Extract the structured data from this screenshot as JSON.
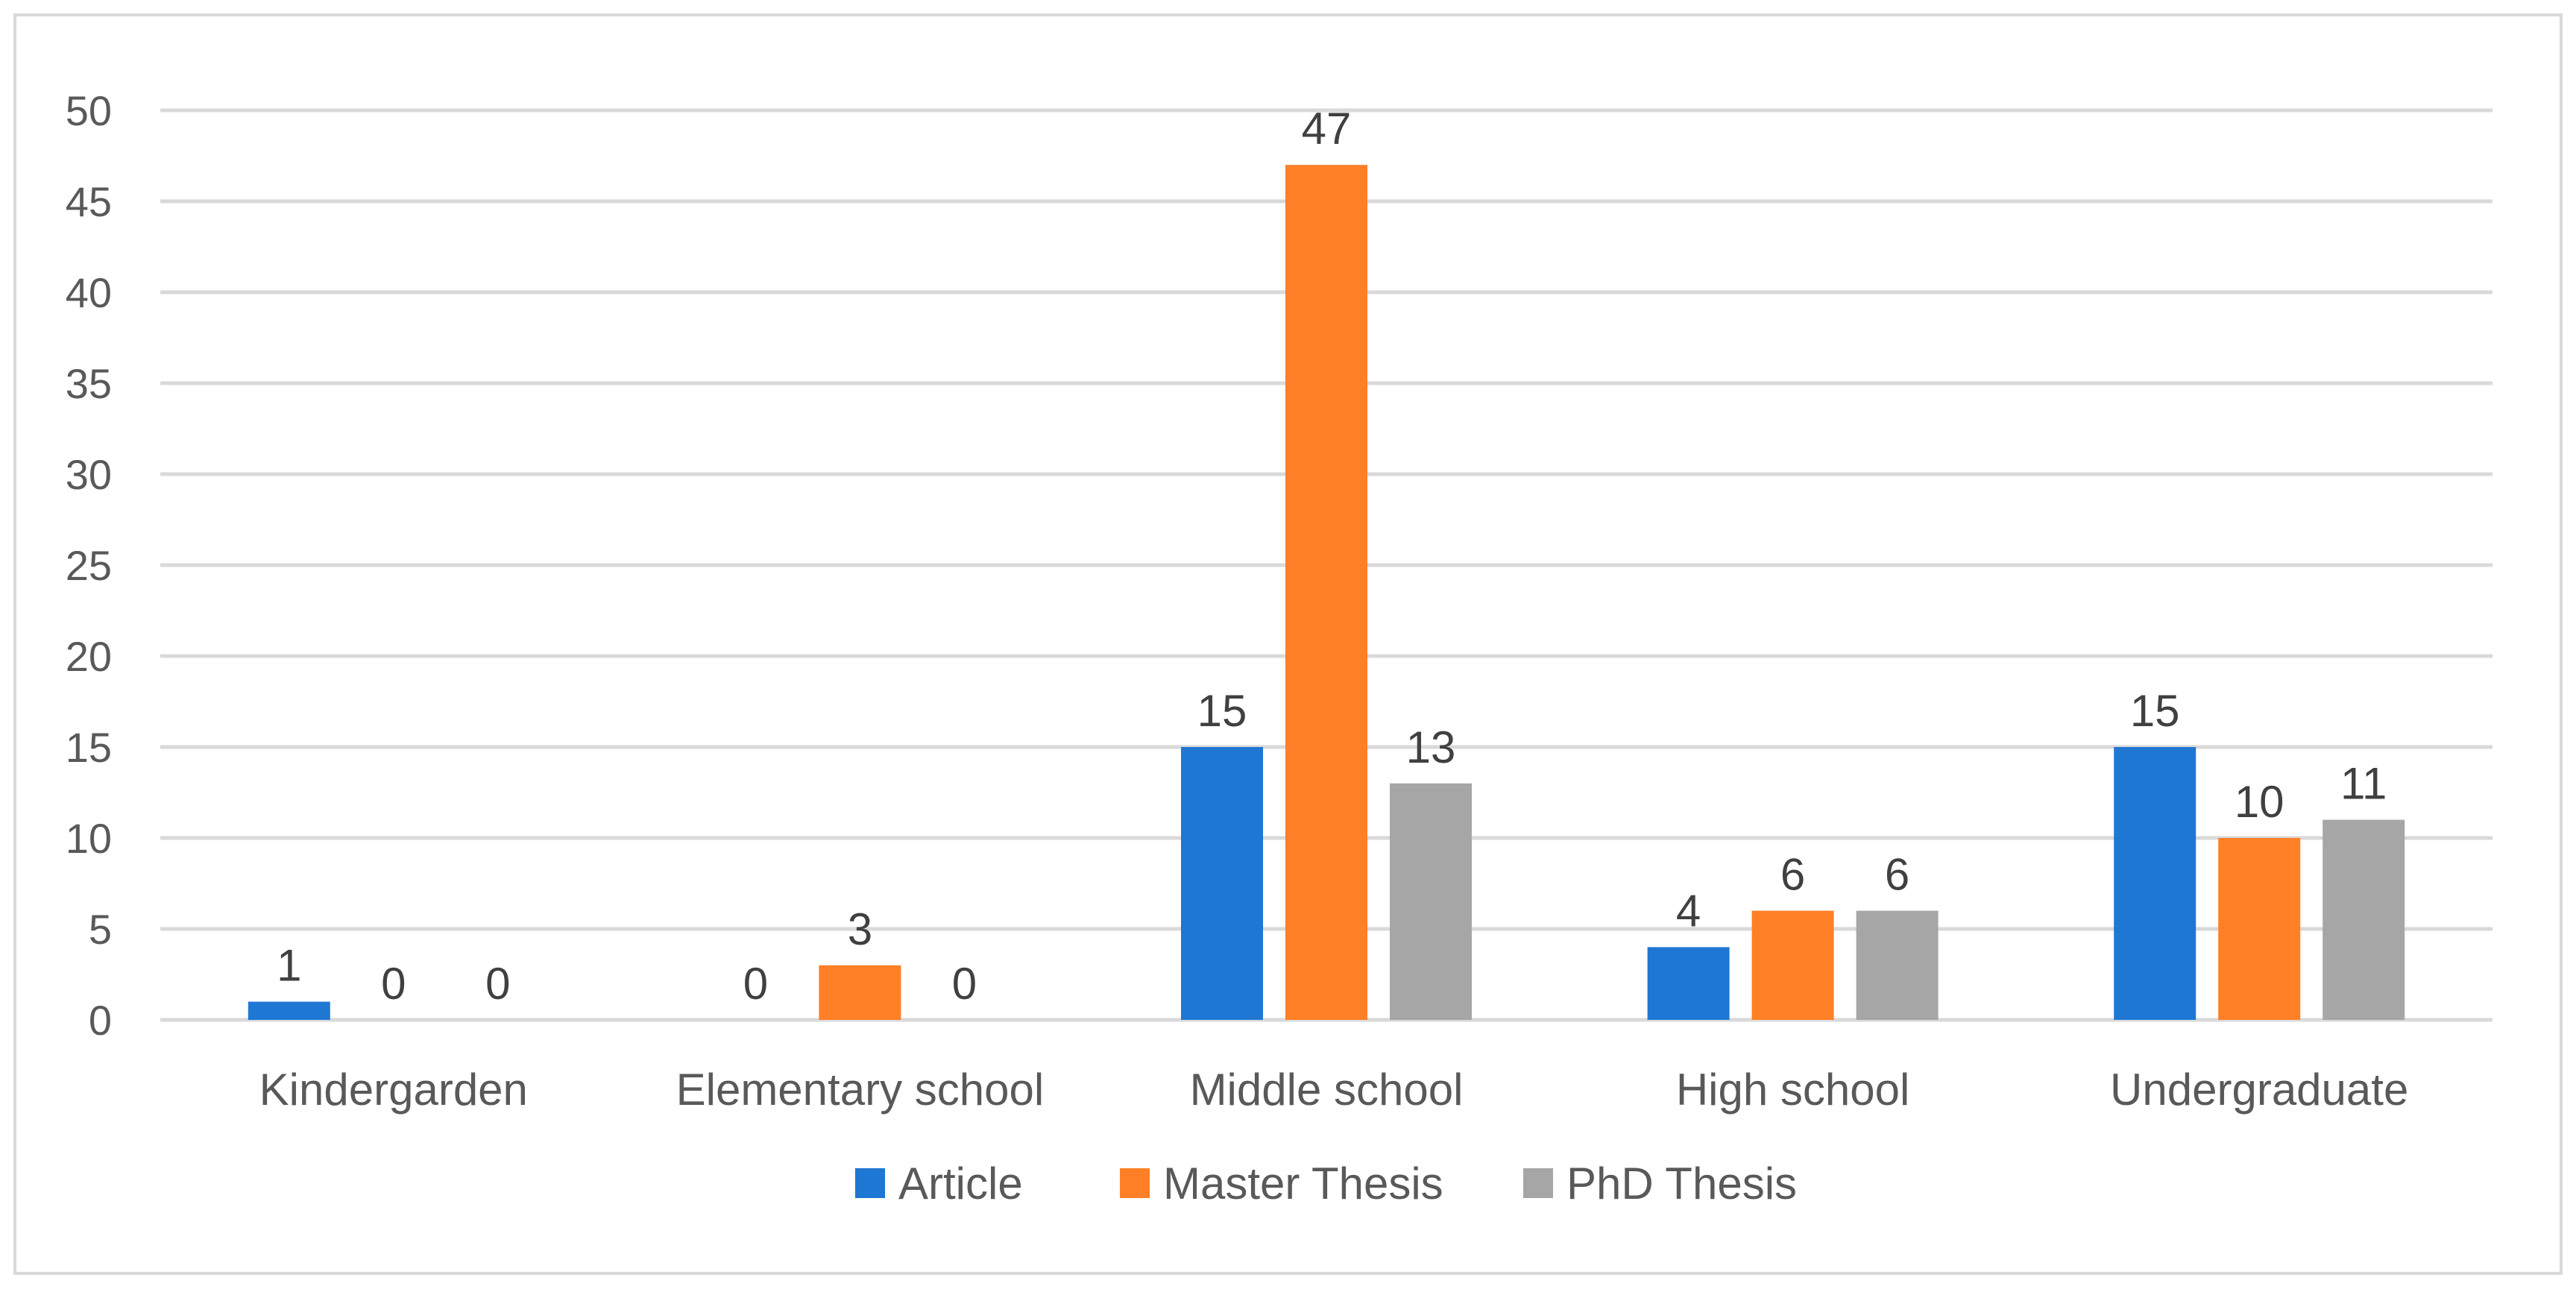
{
  "chart_data": {
    "type": "bar",
    "title": "",
    "xlabel": "",
    "ylabel": "",
    "categories": [
      "Kindergarden",
      "Elementary school",
      "Middle school",
      "High school",
      "Undergraduate"
    ],
    "series": [
      {
        "name": "Article",
        "values": [
          1,
          0,
          15,
          4,
          15
        ],
        "color": "#1f77d4"
      },
      {
        "name": "Master Thesis",
        "values": [
          0,
          3,
          47,
          6,
          10
        ],
        "color": "#ff7f27"
      },
      {
        "name": "PhD Thesis",
        "values": [
          0,
          0,
          13,
          6,
          11
        ],
        "color": "#a6a6a6"
      }
    ],
    "ylim": [
      0,
      50
    ],
    "yticks": [
      0,
      5,
      10,
      15,
      20,
      25,
      30,
      35,
      40,
      45,
      50
    ],
    "data_labels": true,
    "grid": true,
    "legend_position": "bottom"
  }
}
